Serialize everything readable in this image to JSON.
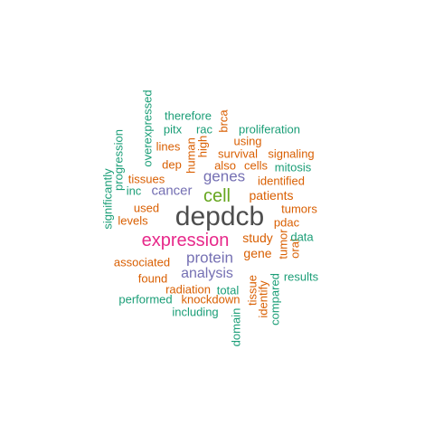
{
  "colors": {
    "gray": "#4d4d4d",
    "green": "#1b9e77",
    "orange": "#d95f02",
    "purple": "#7570b3",
    "magenta": "#e7298a",
    "lime": "#66a61e"
  },
  "words": [
    {
      "text": "depdcb",
      "color": "gray"
    },
    {
      "text": "expression",
      "color": "magenta"
    },
    {
      "text": "cell",
      "color": "lime"
    },
    {
      "text": "genes",
      "color": "purple"
    },
    {
      "text": "protein",
      "color": "purple"
    },
    {
      "text": "analysis",
      "color": "purple"
    },
    {
      "text": "cancer",
      "color": "purple"
    },
    {
      "text": "patients",
      "color": "orange"
    },
    {
      "text": "study",
      "color": "orange"
    },
    {
      "text": "gene",
      "color": "orange"
    },
    {
      "text": "identified",
      "color": "orange"
    },
    {
      "text": "tumors",
      "color": "orange"
    },
    {
      "text": "pdac",
      "color": "orange"
    },
    {
      "text": "used",
      "color": "orange"
    },
    {
      "text": "levels",
      "color": "orange"
    },
    {
      "text": "associated",
      "color": "orange"
    },
    {
      "text": "found",
      "color": "orange"
    },
    {
      "text": "radiation",
      "color": "orange"
    },
    {
      "text": "knockdown",
      "color": "orange"
    },
    {
      "text": "tissues",
      "color": "orange"
    },
    {
      "text": "dep",
      "color": "orange"
    },
    {
      "text": "lines",
      "color": "orange"
    },
    {
      "text": "survival",
      "color": "orange"
    },
    {
      "text": "also",
      "color": "orange"
    },
    {
      "text": "cells",
      "color": "orange"
    },
    {
      "text": "signaling",
      "color": "orange"
    },
    {
      "text": "using",
      "color": "orange"
    },
    {
      "text": "human",
      "color": "orange"
    },
    {
      "text": "high",
      "color": "orange"
    },
    {
      "text": "brca",
      "color": "orange"
    },
    {
      "text": "tumor",
      "color": "orange"
    },
    {
      "text": "oral",
      "color": "orange"
    },
    {
      "text": "identify",
      "color": "orange"
    },
    {
      "text": "tissue",
      "color": "orange"
    },
    {
      "text": "data",
      "color": "green"
    },
    {
      "text": "results",
      "color": "green"
    },
    {
      "text": "total",
      "color": "green"
    },
    {
      "text": "performed",
      "color": "green"
    },
    {
      "text": "including",
      "color": "green"
    },
    {
      "text": "domain",
      "color": "green"
    },
    {
      "text": "compared",
      "color": "green"
    },
    {
      "text": "proliferation",
      "color": "green"
    },
    {
      "text": "mitosis",
      "color": "green"
    },
    {
      "text": "therefore",
      "color": "green"
    },
    {
      "text": "pitx",
      "color": "green"
    },
    {
      "text": "rac",
      "color": "green"
    },
    {
      "text": "inc",
      "color": "green"
    },
    {
      "text": "overexpressed",
      "color": "green"
    },
    {
      "text": "progression",
      "color": "green"
    },
    {
      "text": "significantly",
      "color": "green"
    }
  ]
}
